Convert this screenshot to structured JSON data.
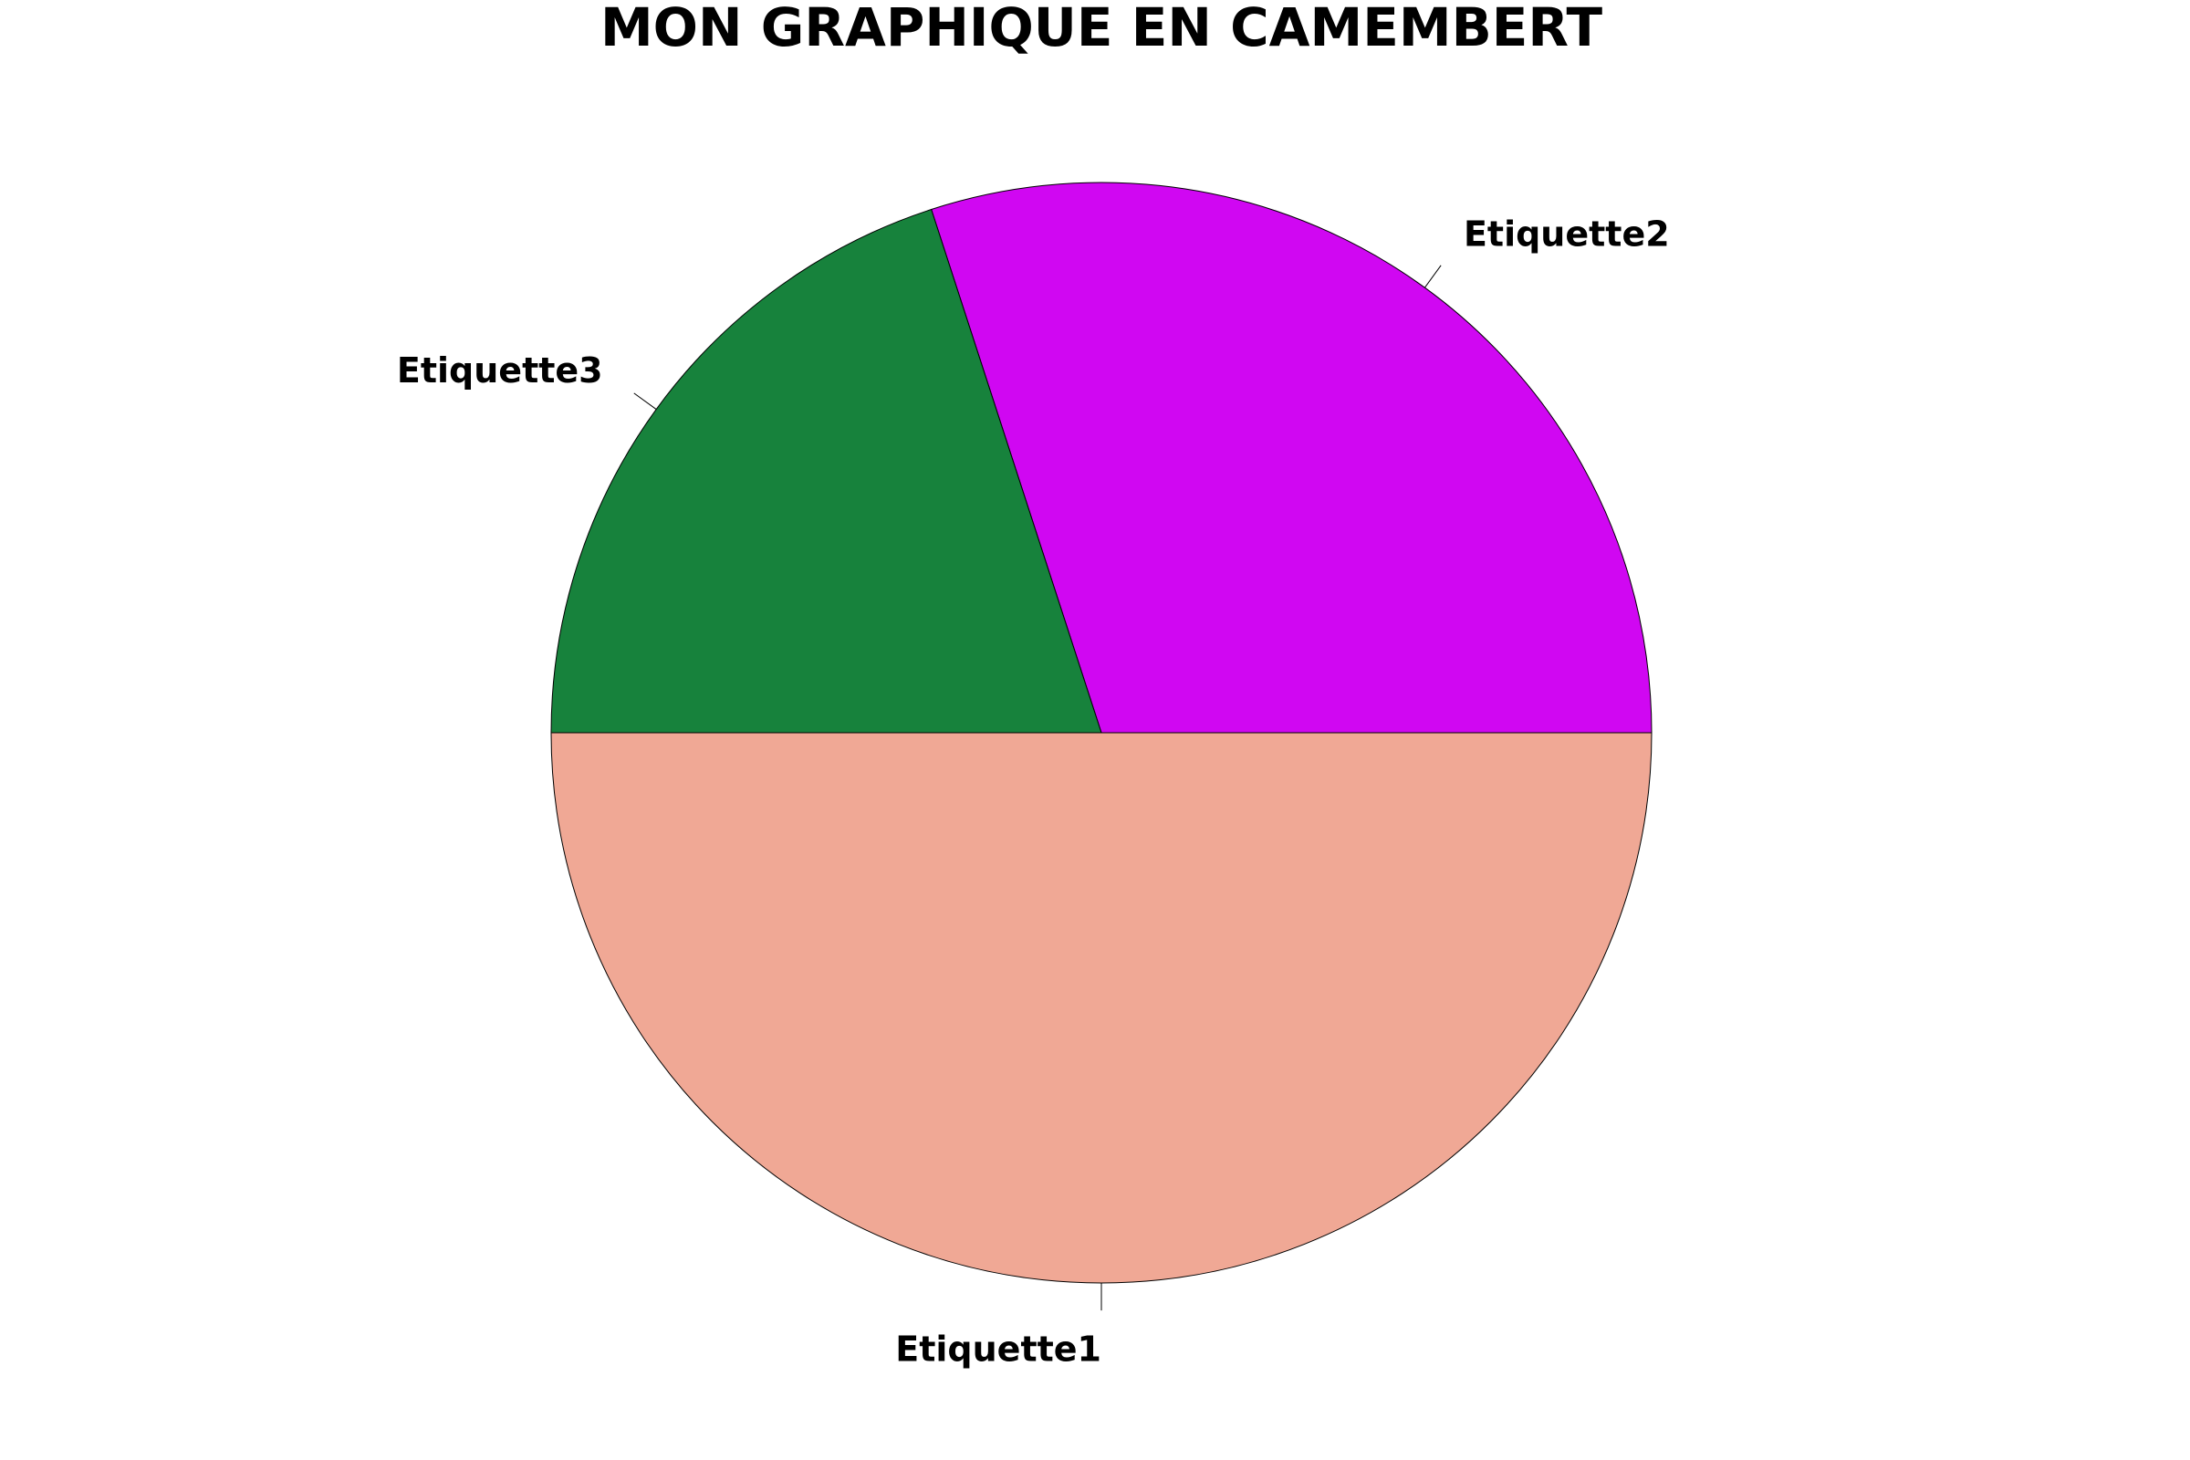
{
  "chart_data": {
    "type": "pie",
    "title": "MON GRAPHIQUE EN CAMEMBERT",
    "labels": [
      "Etiquette1",
      "Etiquette2",
      "Etiquette3"
    ],
    "values": [
      50,
      30,
      20
    ],
    "colors": [
      "#F0A895",
      "#D007F2",
      "#17823C"
    ],
    "start_angle_deg": 180,
    "direction": "counterclockwise"
  }
}
